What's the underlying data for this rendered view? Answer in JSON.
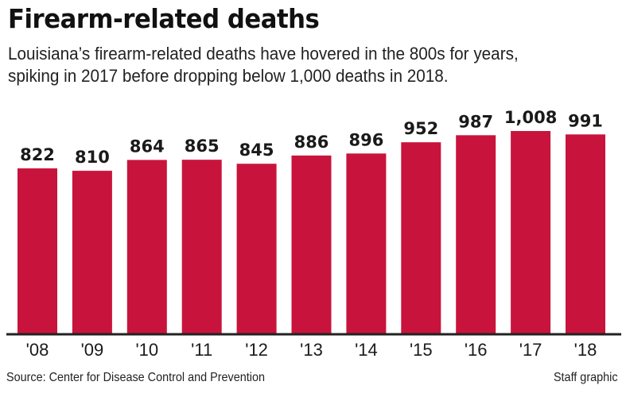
{
  "title": "Firearm-related deaths",
  "subtitle": [
    "Louisiana’s firearm-related deaths have hovered in the 800s for years,",
    "spiking in 2017 before dropping below 1,000 deaths in 2018."
  ],
  "source": "Source: Center for Disease Control and Prevention",
  "credit": "Staff graphic",
  "colors": {
    "bar": "#c8143c",
    "axis": "#222222"
  },
  "chart_data": {
    "type": "bar",
    "categories": [
      "'08",
      "'09",
      "'10",
      "'11",
      "'12",
      "'13",
      "'14",
      "'15",
      "'16",
      "'17",
      "'18"
    ],
    "values": [
      822,
      810,
      864,
      865,
      845,
      886,
      896,
      952,
      987,
      1008,
      991
    ],
    "data_labels": [
      "822",
      "810",
      "864",
      "865",
      "845",
      "886",
      "896",
      "952",
      "987",
      "1,008",
      "991"
    ],
    "ylim": [
      0,
      1008
    ],
    "grid": false
  }
}
